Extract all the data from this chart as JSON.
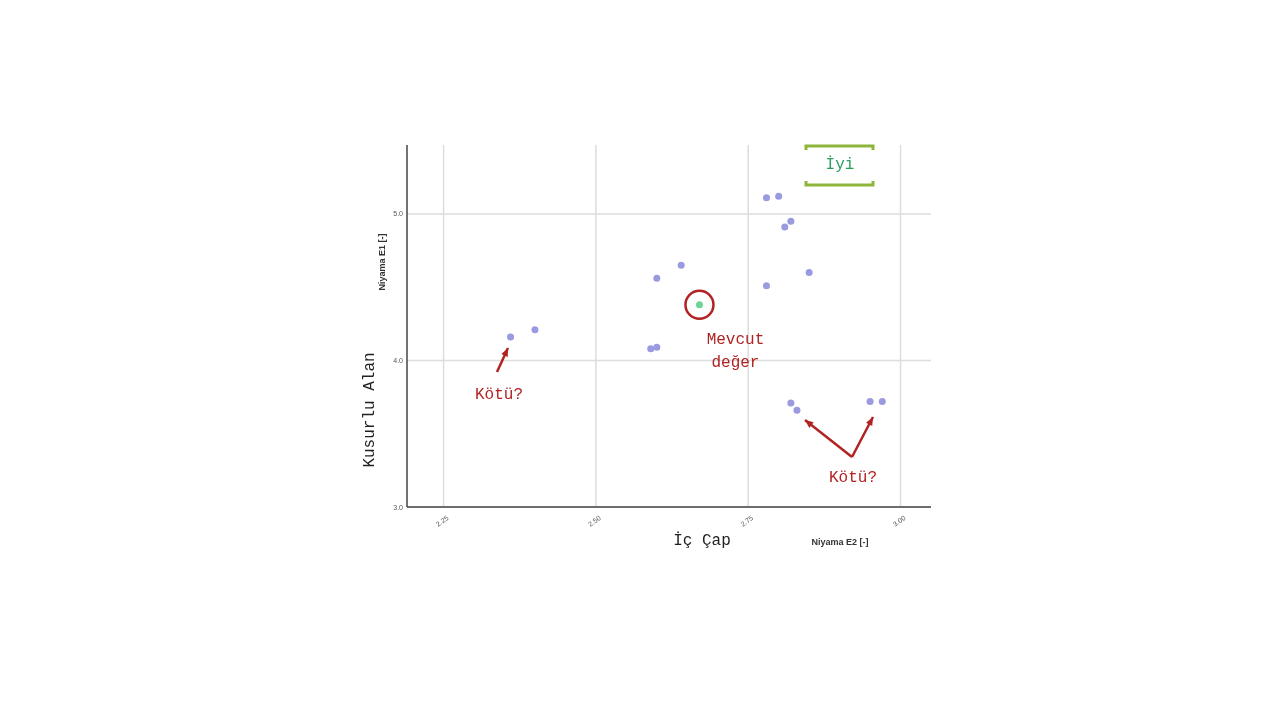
{
  "chart_data": {
    "type": "scatter",
    "xlabel": "İç Çap",
    "ylabel": "Kusurlu Alan",
    "xlim": [
      2.19,
      3.05
    ],
    "ylim": [
      3.0,
      5.47
    ],
    "xticks": [
      {
        "value": 2.25,
        "label": "2.25"
      },
      {
        "value": 2.5,
        "label": "2.50"
      },
      {
        "value": 2.75,
        "label": "2.75"
      },
      {
        "value": 3.0,
        "label": "3.00"
      }
    ],
    "yticks": [
      {
        "value": 3,
        "label": "3.0"
      },
      {
        "value": 4,
        "label": "4.0"
      },
      {
        "value": 5,
        "label": "5.0"
      }
    ],
    "grid": true,
    "marker": "circle",
    "series": [
      {
        "color": "#9a9ae0",
        "x": [
          2.36,
          2.4,
          2.59,
          2.6,
          2.6,
          2.64,
          2.78,
          2.8,
          2.81,
          2.82,
          2.78,
          2.85,
          2.82,
          2.83,
          2.95,
          2.97
        ],
        "values": [
          4.16,
          4.21,
          4.08,
          4.09,
          4.56,
          4.65,
          5.11,
          5.12,
          4.91,
          4.95,
          4.51,
          4.6,
          3.71,
          3.66,
          3.72,
          3.72
        ]
      },
      {
        "color": "#6fd39a",
        "x": [
          2.67
        ],
        "values": [
          4.38
        ]
      }
    ],
    "annotations": [
      "Niyama E1 [-]",
      "Niyama E2 [-]",
      "İyi",
      {
        "text": "Mevcut değer",
        "x": 2.67,
        "y": 4.38
      },
      "Kötü?",
      "Kötü?"
    ]
  }
}
